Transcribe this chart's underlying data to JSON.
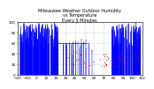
{
  "title": "Milwaukee Weather Outdoor Humidity\nvs Temperature\nEvery 5 Minutes",
  "title_fontsize": 3.5,
  "bg_color": "#ffffff",
  "plot_bg_color": "#ffffff",
  "grid_color": "#888888",
  "blue_color": "#0000ff",
  "red_color": "#ff0000",
  "xlim": [
    -20,
    110
  ],
  "ylim": [
    0,
    100
  ],
  "tick_fontsize": 3.0,
  "xtick_step": 10,
  "ytick_step": 20
}
